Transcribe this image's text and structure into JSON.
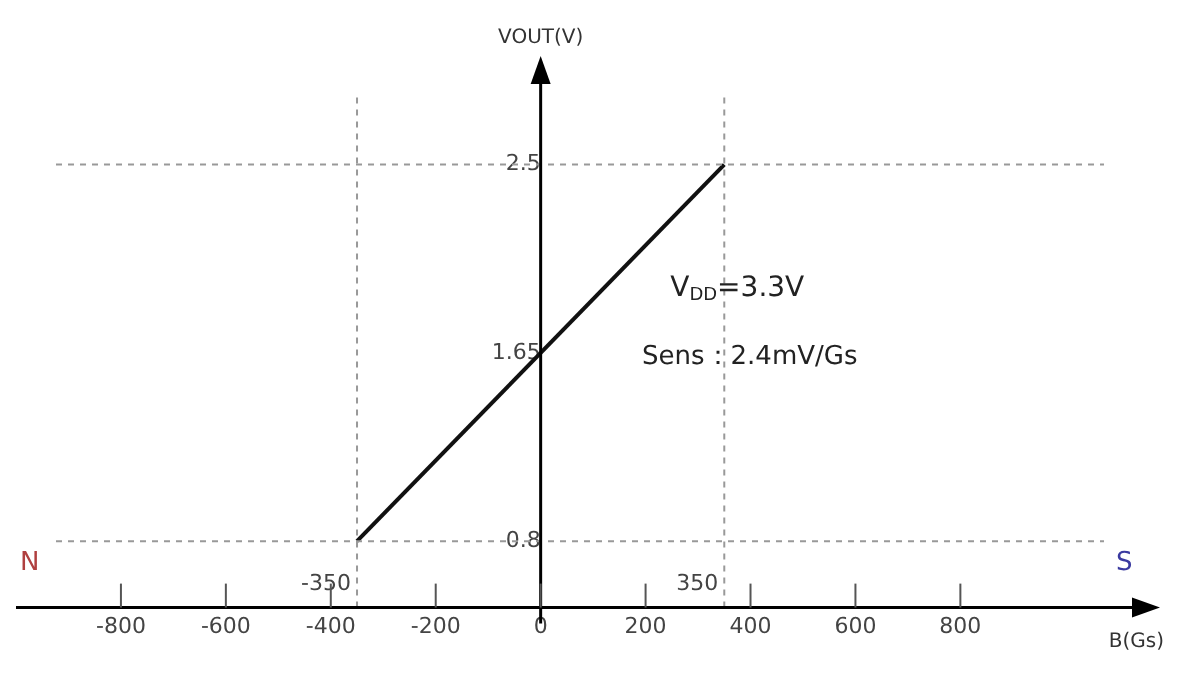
{
  "chart_data": {
    "type": "line",
    "xlabel": "B(Gs)",
    "ylabel": "VOUT(V)",
    "series": [
      {
        "color": "#111111",
        "x": [
          -350,
          350
        ],
        "values": [
          0.8,
          2.5
        ]
      }
    ],
    "xlim": [
      -1000,
      1150
    ],
    "xticks": [
      -800,
      -600,
      -400,
      -200,
      0,
      200,
      400,
      600,
      800
    ],
    "ylim": [
      0.5,
      2.9
    ],
    "yticks": [
      0.8,
      1.65,
      2.5
    ],
    "ref_lines": [
      {
        "axis": "y",
        "value": 0.8,
        "line_style": "dashed",
        "color": "#999999"
      },
      {
        "axis": "y",
        "value": 2.5,
        "line_style": "dashed",
        "color": "#999999"
      },
      {
        "axis": "x",
        "value": -350,
        "label": "-350",
        "line_style": "dashed",
        "color": "#999999"
      },
      {
        "axis": "x",
        "value": 350,
        "label": "350",
        "line_style": "dashed",
        "color": "#999999"
      }
    ],
    "annotations": [
      "N",
      "S",
      "V$_{DD}$=3.3V",
      "Sens：2.4mV/Gs"
    ],
    "grid": false,
    "legend": false,
    "marker": "none",
    "line_style": "solid"
  }
}
